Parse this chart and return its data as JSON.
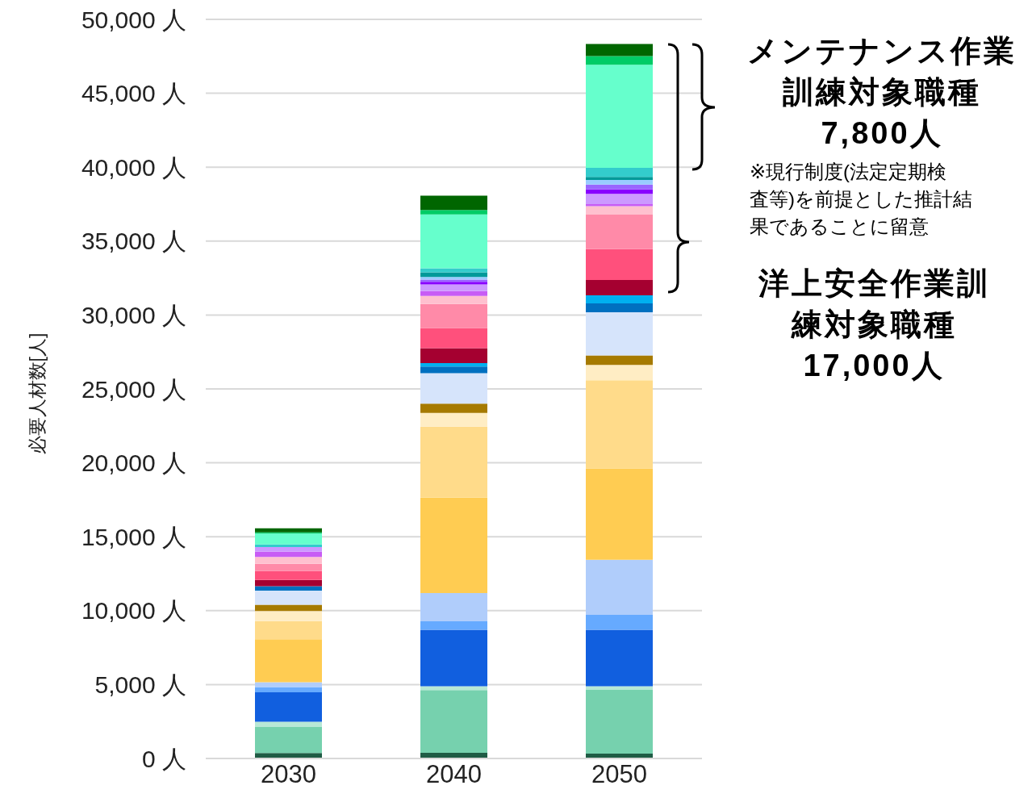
{
  "chart_data": {
    "type": "bar",
    "stacked": true,
    "categories": [
      "2030",
      "2040",
      "2050"
    ],
    "ylabel": "必要人材数[人]",
    "ylim": [
      0,
      50000
    ],
    "yticks": [
      {
        "value": 0,
        "label": "0 人"
      },
      {
        "value": 5000,
        "label": "5,000 人"
      },
      {
        "value": 10000,
        "label": "10,000 人"
      },
      {
        "value": 15000,
        "label": "15,000 人"
      },
      {
        "value": 20000,
        "label": "20,000 人"
      },
      {
        "value": 25000,
        "label": "25,000 人"
      },
      {
        "value": 30000,
        "label": "30,000 人"
      },
      {
        "value": 35000,
        "label": "35,000 人"
      },
      {
        "value": 40000,
        "label": "40,000 人"
      },
      {
        "value": 45000,
        "label": "45,000 人"
      },
      {
        "value": 50000,
        "label": "50,000 人"
      }
    ],
    "grid": "y",
    "series": [
      {
        "color": "#1f5c45",
        "values": [
          370,
          380,
          330
        ]
      },
      {
        "color": "#76d1ae",
        "values": [
          1760,
          4240,
          4310
        ]
      },
      {
        "color": "#b8e8d6",
        "values": [
          360,
          270,
          250
        ]
      },
      {
        "color": "#115fdf",
        "values": [
          1980,
          3820,
          3820
        ]
      },
      {
        "color": "#66aaff",
        "values": [
          360,
          570,
          1000
        ]
      },
      {
        "color": "#b0cdfb",
        "values": [
          330,
          1910,
          3730
        ]
      },
      {
        "color": "#ffcc52",
        "values": [
          2910,
          6460,
          6190
        ]
      },
      {
        "color": "#ffdb8a",
        "values": [
          1220,
          4800,
          5950
        ]
      },
      {
        "color": "#ffedc4",
        "values": [
          690,
          930,
          1050
        ]
      },
      {
        "color": "#a67a00",
        "values": [
          420,
          620,
          640
        ]
      },
      {
        "color": "#d6e4fb",
        "values": [
          950,
          2060,
          2910
        ]
      },
      {
        "color": "#0070c0",
        "values": [
          310,
          460,
          600
        ]
      },
      {
        "color": "#00b0f0",
        "values": [
          null,
          220,
          550
        ]
      },
      {
        "color": "#a50030",
        "values": [
          420,
          1020,
          1040
        ]
      },
      {
        "color": "#ff507c",
        "values": [
          600,
          1360,
          2090
        ]
      },
      {
        "color": "#ff8aa8",
        "values": [
          490,
          1620,
          2330
        ]
      },
      {
        "color": "#ffc0cf",
        "values": [
          460,
          550,
          580
        ]
      },
      {
        "color": "#c85cf5",
        "values": [
          360,
          330,
          130
        ]
      },
      {
        "color": "#cc99ff",
        "values": [
          310,
          450,
          690
        ]
      },
      {
        "color": "#8800ff",
        "values": [
          null,
          180,
          310
        ]
      },
      {
        "color": "#9966ff",
        "values": [
          null,
          150,
          330
        ]
      },
      {
        "color": "#99ccff",
        "values": [
          null,
          180,
          310
        ]
      },
      {
        "color": "#009999",
        "values": [
          null,
          310,
          200
        ]
      },
      {
        "color": "#33cccc",
        "values": [
          180,
          270,
          620
        ]
      },
      {
        "color": "#66ffcc",
        "values": [
          730,
          3640,
          6970
        ]
      },
      {
        "color": "#00cc66",
        "values": [
          90,
          310,
          580
        ]
      },
      {
        "color": "#006600",
        "values": [
          270,
          960,
          820
        ]
      }
    ],
    "annotations": [
      "メンテナンス作業訓練対象職種7,800人",
      "※現行制度(法定定期検査等)を前提とした推計結果であることに留意",
      "洋上安全作業訓練対象職種17,000人"
    ]
  }
}
